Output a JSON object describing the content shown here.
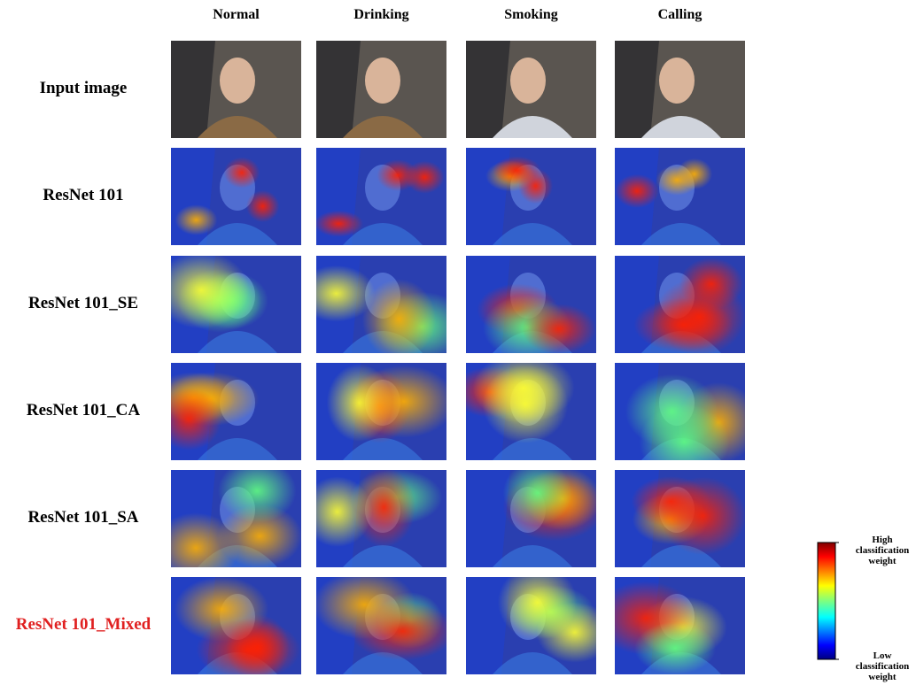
{
  "columns": [
    "Normal",
    "Drinking",
    "Smoking",
    "Calling"
  ],
  "rows": [
    "Input image",
    "ResNet 101",
    "ResNet 101_SE",
    "ResNet 101_CA",
    "ResNet 101_SA",
    "ResNet 101_Mixed"
  ],
  "colorbar": {
    "high": "High classification weight",
    "low": "Low classification weight"
  }
}
